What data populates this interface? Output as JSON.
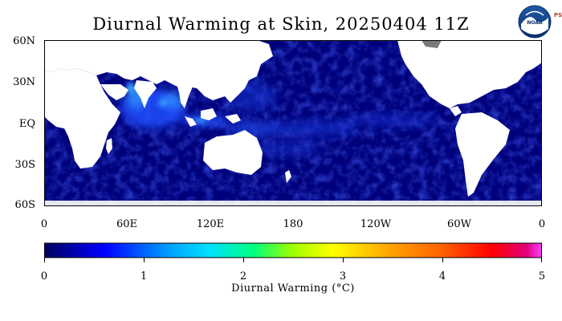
{
  "title": "Diurnal Warming at Skin, 20250404 11Z",
  "logo": {
    "icon": "noaa-logo-icon",
    "text": "NOAA",
    "side_text": "PSL"
  },
  "map": {
    "projection": "equirectangular",
    "lon_range": [
      0,
      360
    ],
    "lat_range": [
      -60,
      60
    ],
    "lat_labels": [
      "60N",
      "30N",
      "EQ",
      "30S",
      "60S"
    ],
    "lon_labels": [
      "0",
      "60E",
      "120E",
      "180",
      "120W",
      "60W",
      "0"
    ],
    "land_color": "#ffffff",
    "ocean_base_color": "#00007a"
  },
  "colorbar": {
    "ticks": [
      "0",
      "1",
      "2",
      "3",
      "4",
      "5"
    ],
    "title": "Diurnal Warming (°C)",
    "range": [
      0,
      5
    ],
    "colors": [
      "#000060",
      "#0000ff",
      "#00a0ff",
      "#00e0ff",
      "#00ff80",
      "#a0ff00",
      "#ffff00",
      "#ffa000",
      "#ff6000",
      "#ff0000",
      "#e0007a",
      "#ff40ff"
    ]
  }
}
